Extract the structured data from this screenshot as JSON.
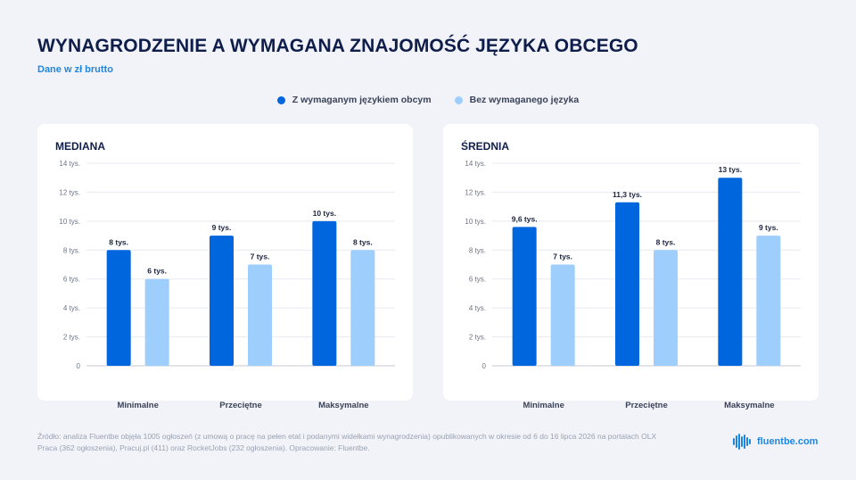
{
  "header": {
    "title": "WYNAGRODZENIE A WYMAGANA ZNAJOMOŚĆ JĘZYKA OBCEGO",
    "subtitle": "Dane w zł brutto"
  },
  "legend": [
    {
      "label": "Z wymaganym językiem obcym",
      "color": "#0066dd"
    },
    {
      "label": "Bez wymaganego języka",
      "color": "#9ecefc"
    }
  ],
  "colors": {
    "series_with": "#0066dd",
    "series_without": "#9ecefc",
    "title": "#0f1d4a",
    "accent": "#1f86e0"
  },
  "chart_data": [
    {
      "type": "bar",
      "title": "MEDIANA",
      "categories": [
        "Minimalne",
        "Przeciętne",
        "Maksymalne"
      ],
      "series": [
        {
          "name": "Z wymaganym językiem obcym",
          "values": [
            8,
            9,
            10
          ],
          "labels": [
            "8 tys.",
            "9 tys.",
            "10 tys."
          ]
        },
        {
          "name": "Bez wymaganego języka",
          "values": [
            6,
            7,
            8
          ],
          "labels": [
            "6 tys.",
            "7 tys.",
            "8 tys."
          ]
        }
      ],
      "yticks": [
        "0",
        "2 tys.",
        "4 tys.",
        "6 tys.",
        "8 tys.",
        "10 tys.",
        "12 tys.",
        "14 tys."
      ],
      "ylim": [
        0,
        14
      ],
      "grid": true,
      "legend_position": "top-center"
    },
    {
      "type": "bar",
      "title": "ŚREDNIA",
      "categories": [
        "Minimalne",
        "Przeciętne",
        "Maksymalne"
      ],
      "series": [
        {
          "name": "Z wymaganym językiem obcym",
          "values": [
            9.6,
            11.3,
            13
          ],
          "labels": [
            "9,6 tys.",
            "11,3 tys.",
            "13 tys."
          ]
        },
        {
          "name": "Bez wymaganego języka",
          "values": [
            7,
            8,
            9
          ],
          "labels": [
            "7 tys.",
            "8 tys.",
            "9 tys."
          ]
        }
      ],
      "yticks": [
        "0",
        "2 tys.",
        "4 tys.",
        "6 tys.",
        "8 tys.",
        "10 tys.",
        "12 tys.",
        "14 tys."
      ],
      "ylim": [
        0,
        14
      ],
      "grid": true,
      "legend_position": "top-center"
    }
  ],
  "footer": {
    "source": "Źródło: analiza Fluentbe objęła 1005 ogłoszeń (z umową o pracę na pełen etat i podanymi widełkami wynagrodzenia) opublikowanych w okresie od 6 do 16 lipca 2026 na portalach OLX Praca (362 ogłoszenia), Pracuj.pl (411) oraz RocketJobs (232 ogłoszenia). Opracowanie: Fluentbe.",
    "brand": "fluentbe.com",
    "brand_icon": "sound-wave-icon"
  }
}
